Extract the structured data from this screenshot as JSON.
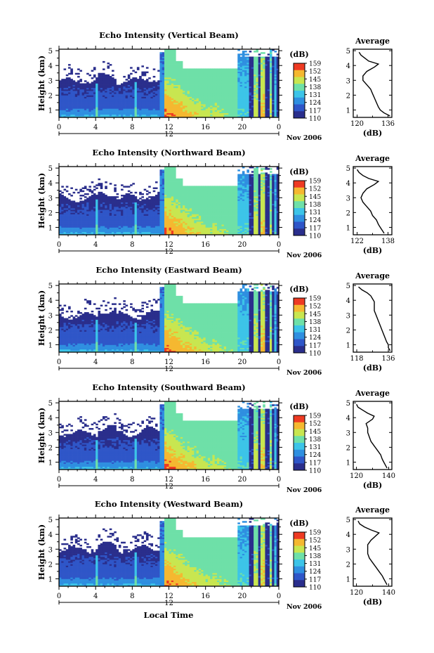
{
  "common": {
    "ylabel": "Height (km)",
    "xticks": [
      "0",
      "4",
      "8",
      "12",
      "16",
      "20",
      "0"
    ],
    "day_label": "12",
    "month_label": "Nov 2006",
    "xlabel": "Local Time",
    "cbar_unit": "(dB)",
    "cbar_ticks": [
      "159",
      "152",
      "145",
      "138",
      "131",
      "124",
      "117",
      "110"
    ],
    "avg_title": "Average",
    "avg_unit": "(dB)",
    "yticks": [
      "1",
      "2",
      "3",
      "4",
      "5"
    ]
  },
  "chart_data": [
    {
      "type": "heatmap",
      "title": "Echo Intensity (Vertical Beam)",
      "x_range_hours": [
        0,
        24
      ],
      "y_range_km": [
        0.5,
        5.1
      ],
      "color_range_db": [
        110,
        159
      ],
      "average_profile": {
        "xticks": [
          "120",
          "136"
        ],
        "xlim": [
          118,
          138
        ],
        "height_km": [
          0.6,
          0.8,
          1.0,
          1.2,
          1.5,
          1.8,
          2.1,
          2.4,
          2.7,
          3.0,
          3.3,
          3.6,
          3.9,
          4.1,
          4.3,
          4.5,
          4.7,
          4.9
        ],
        "value_db": [
          137,
          134,
          132,
          131,
          130,
          129,
          128,
          127,
          125,
          123,
          123,
          125,
          129,
          131,
          126,
          124,
          122,
          121
        ]
      }
    },
    {
      "type": "heatmap",
      "title": "Echo Intensity (Northward Beam)",
      "x_range_hours": [
        0,
        24
      ],
      "y_range_km": [
        0.5,
        5.1
      ],
      "color_range_db": [
        110,
        159
      ],
      "average_profile": {
        "xticks": [
          "122",
          "138"
        ],
        "xlim": [
          120,
          140
        ],
        "height_km": [
          0.6,
          0.8,
          1.0,
          1.2,
          1.5,
          1.8,
          2.1,
          2.4,
          2.7,
          3.0,
          3.3,
          3.6,
          3.9,
          4.1,
          4.3,
          4.5,
          4.7,
          4.9
        ],
        "value_db": [
          136,
          135,
          134,
          133,
          132,
          130,
          129,
          127,
          125,
          124,
          125,
          127,
          131,
          133,
          128,
          125,
          123,
          122
        ]
      }
    },
    {
      "type": "heatmap",
      "title": "Echo Intensity (Eastward Beam)",
      "x_range_hours": [
        0,
        24
      ],
      "y_range_km": [
        0.5,
        5.1
      ],
      "color_range_db": [
        110,
        159
      ],
      "average_profile": {
        "xticks": [
          "118",
          "136"
        ],
        "xlim": [
          116,
          138
        ],
        "height_km": [
          0.6,
          0.8,
          1.0,
          1.2,
          1.5,
          1.8,
          2.1,
          2.4,
          2.7,
          3.0,
          3.3,
          3.6,
          3.9,
          4.1,
          4.3,
          4.5,
          4.7,
          4.9
        ],
        "value_db": [
          137,
          136,
          136,
          135,
          134,
          133,
          132,
          131,
          130,
          129,
          128,
          128,
          128,
          127,
          126,
          124,
          121,
          119
        ]
      }
    },
    {
      "type": "heatmap",
      "title": "Echo Intensity (Southward Beam)",
      "x_range_hours": [
        0,
        24
      ],
      "y_range_km": [
        0.5,
        5.1
      ],
      "color_range_db": [
        110,
        159
      ],
      "average_profile": {
        "xticks": [
          "120",
          "140"
        ],
        "xlim": [
          118,
          142
        ],
        "height_km": [
          0.6,
          0.8,
          1.0,
          1.2,
          1.5,
          1.8,
          2.1,
          2.4,
          2.7,
          3.0,
          3.3,
          3.6,
          3.9,
          4.1,
          4.3,
          4.5,
          4.7,
          4.9
        ],
        "value_db": [
          139,
          138,
          137,
          136,
          135,
          133,
          131,
          129,
          128,
          127,
          127,
          126,
          130,
          131,
          127,
          124,
          121,
          120
        ]
      }
    },
    {
      "type": "heatmap",
      "title": "Echo Intensity (Westward Beam)",
      "x_range_hours": [
        0,
        24
      ],
      "y_range_km": [
        0.5,
        5.1
      ],
      "color_range_db": [
        110,
        159
      ],
      "average_profile": {
        "xticks": [
          "120",
          "140"
        ],
        "xlim": [
          118,
          142
        ],
        "height_km": [
          0.6,
          0.8,
          1.0,
          1.2,
          1.5,
          1.8,
          2.1,
          2.4,
          2.7,
          3.0,
          3.3,
          3.6,
          3.9,
          4.1,
          4.3,
          4.5,
          4.7,
          4.9
        ],
        "value_db": [
          139,
          138,
          137,
          136,
          134,
          132,
          130,
          128,
          127,
          127,
          127,
          129,
          132,
          134,
          129,
          125,
          122,
          121
        ]
      }
    }
  ]
}
